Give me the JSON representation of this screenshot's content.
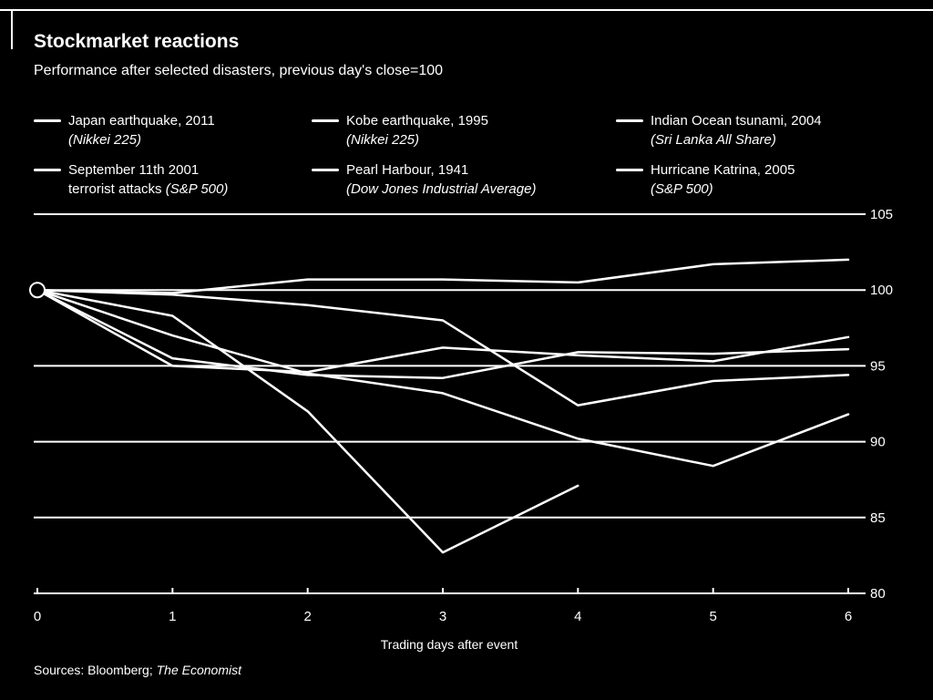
{
  "chart_data": {
    "type": "line",
    "title": "Stockmarket reactions",
    "subtitle": "Performance after selected disasters, previous day's close=100",
    "xlabel": "Trading days after event",
    "ylabel": "",
    "xlim": [
      0,
      6
    ],
    "ylim": [
      80,
      105
    ],
    "x_ticks": [
      0,
      1,
      2,
      3,
      4,
      5,
      6
    ],
    "y_ticks": [
      80,
      85,
      90,
      95,
      100,
      105
    ],
    "grid": "horizontal",
    "legend_position": "top",
    "series": [
      {
        "name": "Japan earthquake, 2011",
        "source": "(Nikkei 225)",
        "x": [
          0,
          1,
          2,
          3,
          4
        ],
        "values": [
          100,
          98.3,
          92.0,
          82.7,
          87.1
        ]
      },
      {
        "name": "Kobe earthquake, 1995",
        "source": "(Nikkei 225)",
        "x": [
          0,
          1,
          2,
          3,
          4,
          5,
          6
        ],
        "values": [
          100,
          99.7,
          99.0,
          98.0,
          92.4,
          94.0,
          94.4
        ]
      },
      {
        "name": "Indian Ocean tsunami, 2004",
        "source": "(Sri Lanka All Share)",
        "x": [
          0,
          1,
          2,
          3,
          4,
          5,
          6
        ],
        "values": [
          100,
          97.0,
          94.5,
          93.2,
          90.2,
          88.4,
          91.8
        ]
      },
      {
        "name": "September 11th 2001",
        "name_line2": "terrorist attacks",
        "source": "(S&P 500)",
        "x": [
          0,
          1,
          2,
          3,
          4,
          5,
          6
        ],
        "values": [
          100,
          95.0,
          94.6,
          96.2,
          95.7,
          95.3,
          96.9
        ]
      },
      {
        "name": "Pearl Harbour, 1941",
        "source": "(Dow Jones Industrial Average)",
        "x": [
          0,
          1,
          2,
          3,
          4,
          5,
          6
        ],
        "values": [
          100,
          95.5,
          94.4,
          94.2,
          95.9,
          95.8,
          96.1
        ]
      },
      {
        "name": "Hurricane Katrina, 2005",
        "source": "(S&P 500)",
        "x": [
          0,
          1,
          2,
          3,
          4,
          5,
          6
        ],
        "values": [
          100,
          99.8,
          100.7,
          100.7,
          100.5,
          101.7,
          102.0
        ]
      }
    ]
  },
  "source_label": "Sources: Bloomberg;",
  "source_publication": "The Economist"
}
